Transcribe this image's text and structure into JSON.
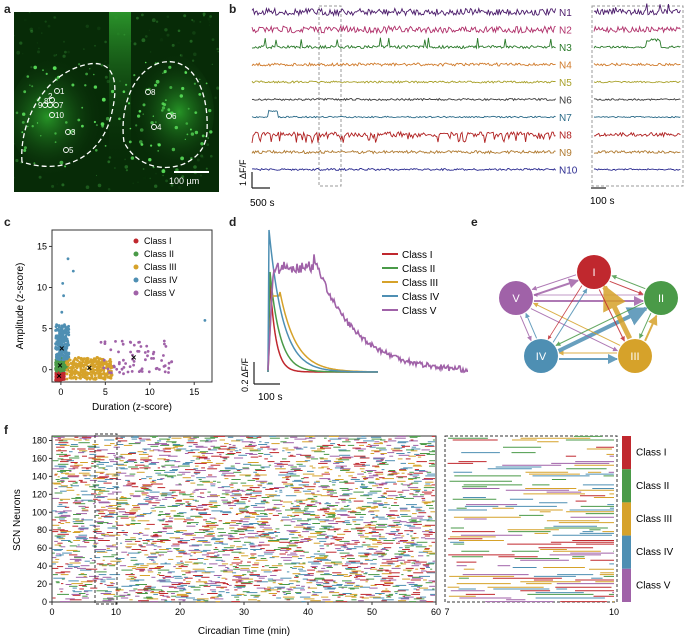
{
  "panel_labels": [
    "a",
    "b",
    "c",
    "d",
    "e",
    "f"
  ],
  "colors": {
    "class_I": "#c0282e",
    "class_II": "#4a9a48",
    "class_III": "#d6a22a",
    "class_IV": "#4e8fb3",
    "class_V": "#a062a8"
  },
  "panel_a": {
    "scale_bar": "100 µm",
    "left_rois": [
      "1",
      "2",
      "9",
      "8",
      "7",
      "10",
      "3",
      "5"
    ],
    "right_rois": [
      "8",
      "6",
      "4"
    ]
  },
  "panel_b": {
    "neurons": [
      {
        "label": "N1",
        "color": "#4a1a6a"
      },
      {
        "label": "N2",
        "color": "#b0306a"
      },
      {
        "label": "N3",
        "color": "#2a7a2a"
      },
      {
        "label": "N4",
        "color": "#d07a2a"
      },
      {
        "label": "N5",
        "color": "#a8a028"
      },
      {
        "label": "N6",
        "color": "#3a3a3a"
      },
      {
        "label": "N7",
        "color": "#2a6a88"
      },
      {
        "label": "N8",
        "color": "#b02020"
      },
      {
        "label": "N9",
        "color": "#b07a30"
      },
      {
        "label": "N10",
        "color": "#2a2a90"
      }
    ],
    "y_scale": "1 ΔF/F",
    "x_scale_main": "500 s",
    "x_scale_zoom": "100 s"
  },
  "chart_data": [
    {
      "type": "scatter",
      "panel": "c",
      "xlabel": "Duration (z-score)",
      "ylabel": "Amplitude (z-score)",
      "xlim": [
        -1,
        17
      ],
      "ylim": [
        -1.5,
        17
      ],
      "xticks": [
        "0",
        "5",
        "10",
        "15"
      ],
      "yticks": [
        "0",
        "5",
        "10",
        "15"
      ],
      "legend": [
        "Class I",
        "Class II",
        "Class III",
        "Class IV",
        "Class V"
      ],
      "centroids": [
        {
          "class": "Class I",
          "x": -0.2,
          "y": -0.8
        },
        {
          "class": "Class II",
          "x": -0.1,
          "y": 0.5
        },
        {
          "class": "Class III",
          "x": 3.2,
          "y": 0.2
        },
        {
          "class": "Class IV",
          "x": 0.1,
          "y": 2.6
        },
        {
          "class": "Class V",
          "x": 8.2,
          "y": 1.5
        }
      ]
    },
    {
      "type": "line",
      "panel": "d",
      "legend": [
        "Class I",
        "Class II",
        "Class III",
        "Class IV",
        "Class V"
      ],
      "y_scale": "0.2 ΔF/F",
      "x_scale": "100 s"
    },
    {
      "type": "diagram",
      "panel": "e",
      "nodes": [
        "I",
        "II",
        "III",
        "IV",
        "V"
      ]
    },
    {
      "type": "raster",
      "panel": "f",
      "xlabel": "Circadian Time (min)",
      "ylabel": "SCN Neurons",
      "xticks": [
        "0",
        "10",
        "20",
        "30",
        "40",
        "50",
        "60"
      ],
      "yticks": [
        "0",
        "20",
        "40",
        "60",
        "80",
        "100",
        "120",
        "140",
        "160",
        "180"
      ],
      "zoom_xticks": [
        "7",
        "10"
      ],
      "colorbar": [
        "Class I",
        "Class II",
        "Class III",
        "Class IV",
        "Class V"
      ]
    }
  ]
}
